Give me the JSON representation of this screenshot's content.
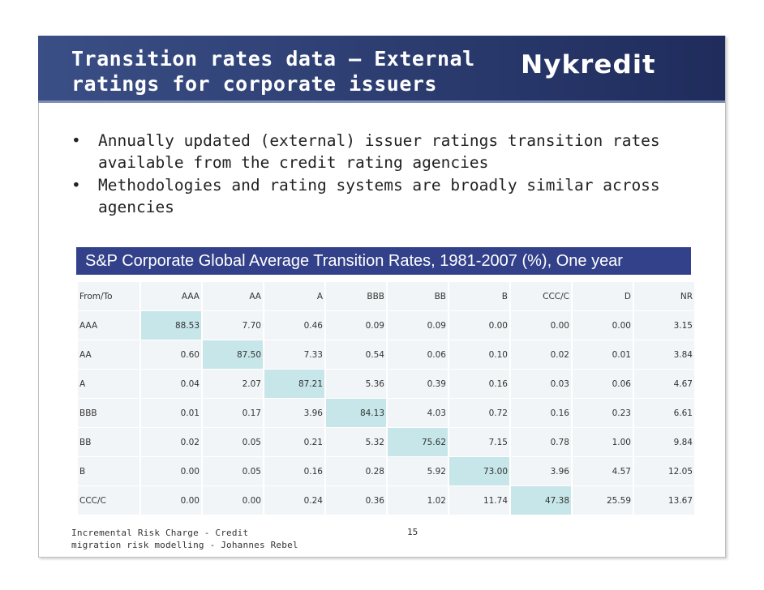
{
  "slide": {
    "title_line1": "Transition rates data – External",
    "title_line2": "ratings for corporate issuers",
    "logo": "Nykredit",
    "bullets": [
      {
        "line1": "Annually updated (external) issuer ratings transition rates",
        "line2": "available from the credit rating agencies"
      },
      {
        "line1": "Methodologies and rating systems are broadly similar across",
        "line2": "agencies"
      }
    ],
    "bullet_symbol": "•"
  },
  "table": {
    "title": "S&P Corporate Global Average Transition Rates, 1981-2007 (%), One year",
    "header": [
      "From/To",
      "AAA",
      "AA",
      "A",
      "BBB",
      "BB",
      "B",
      "CCC/C",
      "D",
      "NR"
    ],
    "rows": [
      [
        "AAA",
        "88.53",
        "7.70",
        "0.46",
        "0.09",
        "0.09",
        "0.00",
        "0.00",
        "0.00",
        "3.15"
      ],
      [
        "AA",
        "0.60",
        "87.50",
        "7.33",
        "0.54",
        "0.06",
        "0.10",
        "0.02",
        "0.01",
        "3.84"
      ],
      [
        "A",
        "0.04",
        "2.07",
        "87.21",
        "5.36",
        "0.39",
        "0.16",
        "0.03",
        "0.06",
        "4.67"
      ],
      [
        "BBB",
        "0.01",
        "0.17",
        "3.96",
        "84.13",
        "4.03",
        "0.72",
        "0.16",
        "0.23",
        "6.61"
      ],
      [
        "BB",
        "0.02",
        "0.05",
        "0.21",
        "5.32",
        "75.62",
        "7.15",
        "0.78",
        "1.00",
        "9.84"
      ],
      [
        "B",
        "0.00",
        "0.05",
        "0.16",
        "0.28",
        "5.92",
        "73.00",
        "3.96",
        "4.57",
        "12.05"
      ],
      [
        "CCC/C",
        "0.00",
        "0.00",
        "0.24",
        "0.36",
        "1.02",
        "11.74",
        "47.38",
        "25.59",
        "13.67"
      ]
    ]
  },
  "footer": {
    "line1": "Incremental Risk Charge - Credit",
    "line2": "migration risk modelling - Johannes Rebel",
    "page": "15"
  },
  "colors": {
    "title_bar": "#2e3f73",
    "table_title": "#33418a",
    "diag_highlight": "#c7e6e9",
    "cell_bg": "#f2f5f7"
  }
}
